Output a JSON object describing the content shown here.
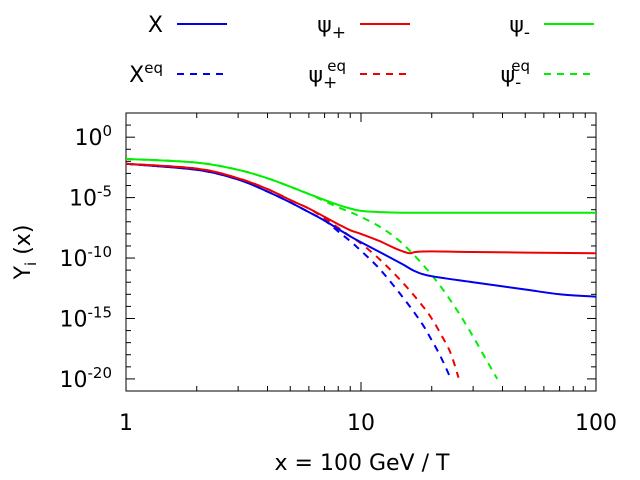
{
  "chart_data": {
    "type": "line",
    "title": "",
    "xlabel": "x = 100 GeV / T",
    "ylabel_main": "Y",
    "ylabel_sub": "i",
    "ylabel_rest": " (x)",
    "xscale": "log",
    "yscale": "log",
    "xlim": [
      1,
      100
    ],
    "ylim_exp": [
      -21,
      2
    ],
    "x_ticks": [
      {
        "value": 1,
        "label": "1"
      },
      {
        "value": 10,
        "label": "10"
      },
      {
        "value": 100,
        "label": "100"
      }
    ],
    "y_ticks": [
      {
        "exp": 0,
        "base": "10",
        "sup": "0"
      },
      {
        "exp": -5,
        "base": "10",
        "sup": "-5"
      },
      {
        "exp": -10,
        "base": "10",
        "sup": "-10"
      },
      {
        "exp": -15,
        "base": "10",
        "sup": "-15"
      },
      {
        "exp": -20,
        "base": "10",
        "sup": "-20"
      }
    ],
    "legend_position": "top",
    "series": [
      {
        "key": "X",
        "base": "X",
        "sup": "",
        "sub": "",
        "color": "#0000ee",
        "dash": false,
        "x": [
          1,
          2,
          3,
          4,
          5,
          6,
          7,
          8,
          9,
          10,
          12,
          15,
          17,
          20,
          30,
          50,
          70,
          100
        ],
        "logy": [
          -2.2,
          -2.7,
          -3.5,
          -4.5,
          -5.4,
          -6.2,
          -6.9,
          -7.6,
          -8.2,
          -8.7,
          -9.5,
          -10.5,
          -11.1,
          -11.5,
          -12.0,
          -12.6,
          -13.0,
          -13.2
        ]
      },
      {
        "key": "Xeq",
        "base": "X",
        "sup": "eq",
        "sub": "",
        "color": "#0000ee",
        "dash": true,
        "x": [
          1,
          2,
          3,
          4,
          5,
          6,
          7,
          8,
          9,
          10,
          12,
          15,
          18,
          20,
          22,
          24
        ],
        "logy": [
          -2.2,
          -2.7,
          -3.5,
          -4.5,
          -5.4,
          -6.2,
          -6.9,
          -7.8,
          -8.6,
          -9.4,
          -10.9,
          -13.2,
          -15.3,
          -16.8,
          -18.3,
          -19.9
        ]
      },
      {
        "key": "psi_plus",
        "base": "ψ",
        "sup": "",
        "sub": "+",
        "color": "#ee0000",
        "dash": false,
        "x": [
          1,
          2,
          3,
          4,
          5,
          6,
          7,
          8,
          9,
          10,
          12,
          14,
          16,
          17,
          20,
          30,
          50,
          100
        ],
        "logy": [
          -2.2,
          -2.6,
          -3.4,
          -4.3,
          -5.2,
          -5.9,
          -6.6,
          -7.2,
          -7.7,
          -8.0,
          -8.6,
          -9.2,
          -9.6,
          -9.5,
          -9.45,
          -9.5,
          -9.55,
          -9.6
        ]
      },
      {
        "key": "psi_plus_eq",
        "base": "ψ",
        "sup": "eq",
        "sub": "+",
        "color": "#ee0000",
        "dash": true,
        "x": [
          1,
          2,
          3,
          4,
          5,
          6,
          7,
          8,
          9,
          10,
          12,
          15,
          18,
          20,
          22,
          24,
          26
        ],
        "logy": [
          -2.2,
          -2.6,
          -3.4,
          -4.3,
          -5.2,
          -5.9,
          -6.7,
          -7.5,
          -8.2,
          -8.8,
          -10.1,
          -12.0,
          -13.8,
          -15.0,
          -16.4,
          -17.8,
          -19.9
        ]
      },
      {
        "key": "psi_minus",
        "base": "ψ",
        "sup": "",
        "sub": "-",
        "color": "#00ee00",
        "dash": false,
        "x": [
          1,
          2,
          3,
          4,
          5,
          6,
          7,
          8,
          9,
          10,
          12,
          15,
          20,
          30,
          50,
          100
        ],
        "logy": [
          -1.8,
          -2.1,
          -2.7,
          -3.4,
          -4.1,
          -4.7,
          -5.2,
          -5.6,
          -5.9,
          -6.1,
          -6.2,
          -6.25,
          -6.25,
          -6.25,
          -6.25,
          -6.25
        ]
      },
      {
        "key": "psi_minus_eq",
        "base": "ψ",
        "sup": "eq",
        "sub": "-",
        "color": "#00ee00",
        "dash": true,
        "x": [
          1,
          2,
          3,
          4,
          5,
          6,
          7,
          8,
          9,
          10,
          12,
          15,
          20,
          25,
          30,
          35,
          38
        ],
        "logy": [
          -1.8,
          -2.1,
          -2.7,
          -3.4,
          -4.1,
          -4.7,
          -5.3,
          -5.8,
          -6.2,
          -6.6,
          -7.4,
          -8.8,
          -11.4,
          -14.0,
          -16.5,
          -18.8,
          -20.0
        ]
      }
    ]
  }
}
